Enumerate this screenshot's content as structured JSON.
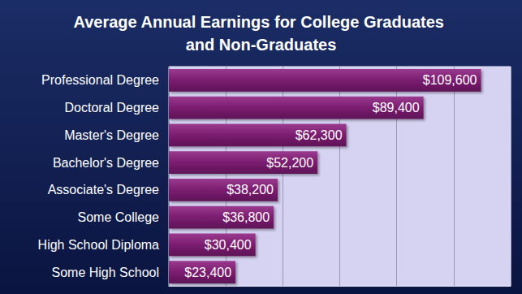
{
  "chart_data": {
    "type": "bar",
    "orientation": "horizontal",
    "title": "Average Annual Earnings for College Graduates and Non-Graduates",
    "categories": [
      "Professional Degree",
      "Doctoral Degree",
      "Master's Degree",
      "Bachelor's Degree",
      "Associate's Degree",
      "Some College",
      "High School Diploma",
      "Some High School"
    ],
    "values": [
      109600,
      89400,
      62300,
      52200,
      38200,
      36800,
      30400,
      23400
    ],
    "value_labels": [
      "$109,600",
      "$89,400",
      "$62,300",
      "$52,200",
      "$38,200",
      "$36,800",
      "$30,400",
      "$23,400"
    ],
    "color": "#7b1d70",
    "xlim": [
      0,
      120000
    ],
    "xticks": [
      0,
      20000,
      40000,
      60000,
      80000,
      100000,
      120000
    ],
    "grid": true,
    "data_labels": true,
    "tick_labels": "y"
  }
}
